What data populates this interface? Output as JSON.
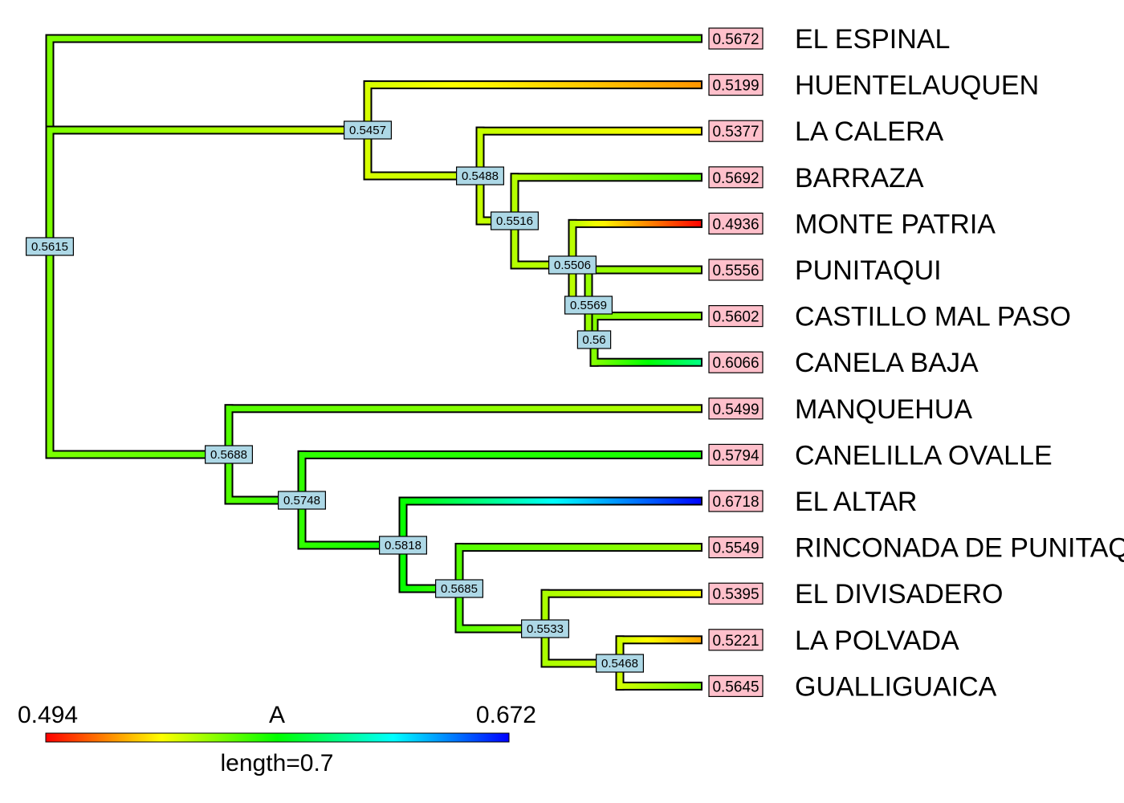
{
  "chart_data": {
    "type": "phylogenetic-tree",
    "trait_name": "A",
    "tree_length_label": "length=0.7",
    "colorbar": {
      "min_label": "0.494",
      "max_label": "0.672",
      "min": 0.494,
      "max": 0.672,
      "colors": [
        "#ff0000",
        "#ffff00",
        "#00ff00",
        "#00ffff",
        "#0000ff"
      ]
    },
    "tips": [
      {
        "id": "t1",
        "name": "EL ESPINAL",
        "value": "0.5672"
      },
      {
        "id": "t2",
        "name": "HUENTELAUQUEN",
        "value": "0.5199"
      },
      {
        "id": "t3",
        "name": "LA CALERA",
        "value": "0.5377"
      },
      {
        "id": "t4",
        "name": "BARRAZA",
        "value": "0.5692"
      },
      {
        "id": "t5",
        "name": "MONTE PATRIA",
        "value": "0.4936"
      },
      {
        "id": "t6",
        "name": "PUNITAQUI",
        "value": "0.5556"
      },
      {
        "id": "t7",
        "name": "CASTILLO MAL PASO",
        "value": "0.5602"
      },
      {
        "id": "t8",
        "name": "CANELA BAJA",
        "value": "0.6066"
      },
      {
        "id": "t9",
        "name": "MANQUEHUA",
        "value": "0.5499"
      },
      {
        "id": "t10",
        "name": "CANELILLA OVALLE",
        "value": "0.5794"
      },
      {
        "id": "t11",
        "name": "EL ALTAR",
        "value": "0.6718"
      },
      {
        "id": "t12",
        "name": "RINCONADA DE PUNITAQUI",
        "value": "0.5549"
      },
      {
        "id": "t13",
        "name": "EL DIVISADERO",
        "value": "0.5395"
      },
      {
        "id": "t14",
        "name": "LA POLVADA",
        "value": "0.5221"
      },
      {
        "id": "t15",
        "name": "GUALLIGUAICA",
        "value": "0.5645"
      }
    ],
    "nodes": [
      {
        "id": "root",
        "value": "0.5615",
        "parent": null
      },
      {
        "id": "n2",
        "value": "0.5457",
        "parent": "root"
      },
      {
        "id": "n3",
        "value": "0.5488",
        "parent": "n2"
      },
      {
        "id": "n4",
        "value": "0.5516",
        "parent": "n3"
      },
      {
        "id": "n5",
        "value": "0.5506",
        "parent": "n4"
      },
      {
        "id": "n6",
        "value": "0.5569",
        "parent": "n5"
      },
      {
        "id": "n7",
        "value": "0.56",
        "parent": "n6"
      },
      {
        "id": "n8",
        "value": "0.5688",
        "parent": "root"
      },
      {
        "id": "n9",
        "value": "0.5748",
        "parent": "n8"
      },
      {
        "id": "n10",
        "value": "0.5818",
        "parent": "n9"
      },
      {
        "id": "n11",
        "value": "0.5685",
        "parent": "n10"
      },
      {
        "id": "n12",
        "value": "0.5533",
        "parent": "n11"
      },
      {
        "id": "n13",
        "value": "0.5468",
        "parent": "n12"
      }
    ],
    "tip_parents": {
      "t1": "root",
      "t2": "n2",
      "t3": "n3",
      "t4": "n4",
      "t5": "n5",
      "t6": "n6",
      "t7": "n7",
      "t8": "n7",
      "t9": "n8",
      "t10": "n9",
      "t11": "n10",
      "t12": "n11",
      "t13": "n12",
      "t14": "n13",
      "t15": "n13"
    }
  }
}
